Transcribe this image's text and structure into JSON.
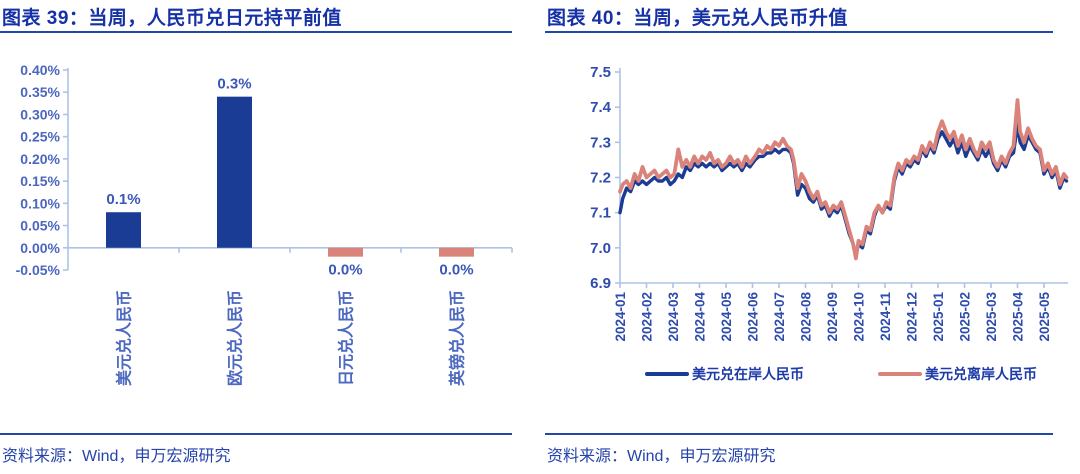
{
  "panels": [
    {
      "source": "资料来源：Wind，申万宏源研究"
    },
    {
      "source": "资料来源：Wind，申万宏源研究"
    }
  ],
  "colors": {
    "navy": "#1B3C94",
    "salmon": "#D9837B",
    "title_blue": "#1631A6",
    "rule_blue": "#2147AD",
    "axis_light_blue": "#AEC3E6",
    "tick_label_blue": "#4A66BE",
    "bold_label_blue": "#2E4BAE",
    "data_label_blue": "#3B57B8",
    "category_label_blue": "#4C68C0",
    "source_blue": "#2443AB",
    "legend_text_blue": "#1D3AA8"
  },
  "chart_data": [
    {
      "type": "bar",
      "title": "图表 39：当周，人民币兑日元持平前值",
      "categories": [
        "美元兑人民币",
        "欧元兑人民币",
        "日元兑人民币",
        "英镑兑人民币"
      ],
      "values": [
        0.08,
        0.34,
        -0.02,
        -0.02
      ],
      "bar_labels": [
        "0.1%",
        "0.3%",
        "0.0%",
        "0.0%"
      ],
      "y_tick_labels": [
        "0.40%",
        "0.35%",
        "0.30%",
        "0.25%",
        "0.20%",
        "0.15%",
        "0.10%",
        "0.05%",
        "0.00%",
        "-0.05%"
      ],
      "ylim": [
        -0.05,
        0.4
      ],
      "xlabel": "",
      "ylabel": "",
      "grid": false,
      "unit": "percent_week_change"
    },
    {
      "type": "line",
      "title": "图表 40：当周，美元兑人民币升值",
      "x_tick_labels": [
        "2024-01",
        "2024-02",
        "2024-03",
        "2024-04",
        "2024-05",
        "2024-06",
        "2024-07",
        "2024-08",
        "2024-09",
        "2024-10",
        "2024-11",
        "2024-12",
        "2025-01",
        "2025-02",
        "2025-03",
        "2025-04",
        "2025-05"
      ],
      "y_tick_labels": [
        "7.5",
        "7.4",
        "7.3",
        "7.2",
        "7.1",
        "7.0",
        "6.9"
      ],
      "ylim": [
        6.9,
        7.5
      ],
      "grid": false,
      "legend_position": "bottom",
      "series": [
        {
          "name": "美元兑在岸人民币",
          "color": "#1B3C94",
          "points": [
            [
              0.0,
              7.1
            ],
            [
              0.1,
              7.14
            ],
            [
              0.25,
              7.17
            ],
            [
              0.4,
              7.16
            ],
            [
              0.55,
              7.19
            ],
            [
              0.7,
              7.18
            ],
            [
              0.85,
              7.19
            ],
            [
              1.0,
              7.18
            ],
            [
              1.15,
              7.19
            ],
            [
              1.3,
              7.2
            ],
            [
              1.45,
              7.19
            ],
            [
              1.6,
              7.19
            ],
            [
              1.75,
              7.2
            ],
            [
              1.9,
              7.18
            ],
            [
              2.05,
              7.19
            ],
            [
              2.2,
              7.21
            ],
            [
              2.35,
              7.2
            ],
            [
              2.5,
              7.23
            ],
            [
              2.65,
              7.22
            ],
            [
              2.8,
              7.24
            ],
            [
              2.95,
              7.23
            ],
            [
              3.1,
              7.24
            ],
            [
              3.25,
              7.23
            ],
            [
              3.4,
              7.24
            ],
            [
              3.55,
              7.23
            ],
            [
              3.7,
              7.24
            ],
            [
              3.85,
              7.22
            ],
            [
              4.0,
              7.23
            ],
            [
              4.15,
              7.24
            ],
            [
              4.3,
              7.23
            ],
            [
              4.45,
              7.24
            ],
            [
              4.6,
              7.22
            ],
            [
              4.75,
              7.24
            ],
            [
              4.9,
              7.23
            ],
            [
              5.1,
              7.25
            ],
            [
              5.25,
              7.26
            ],
            [
              5.4,
              7.26
            ],
            [
              5.55,
              7.27
            ],
            [
              5.7,
              7.27
            ],
            [
              5.85,
              7.28
            ],
            [
              6.0,
              7.27
            ],
            [
              6.15,
              7.28
            ],
            [
              6.3,
              7.28
            ],
            [
              6.45,
              7.27
            ],
            [
              6.55,
              7.24
            ],
            [
              6.7,
              7.15
            ],
            [
              6.85,
              7.18
            ],
            [
              7.0,
              7.17
            ],
            [
              7.15,
              7.14
            ],
            [
              7.3,
              7.13
            ],
            [
              7.45,
              7.15
            ],
            [
              7.6,
              7.11
            ],
            [
              7.75,
              7.12
            ],
            [
              7.9,
              7.09
            ],
            [
              8.05,
              7.11
            ],
            [
              8.2,
              7.1
            ],
            [
              8.35,
              7.12
            ],
            [
              8.5,
              7.08
            ],
            [
              8.65,
              7.04
            ],
            [
              8.8,
              7.01
            ],
            [
              8.9,
              6.98
            ],
            [
              9.0,
              7.01
            ],
            [
              9.15,
              7.0
            ],
            [
              9.3,
              7.05
            ],
            [
              9.45,
              7.04
            ],
            [
              9.6,
              7.09
            ],
            [
              9.75,
              7.12
            ],
            [
              9.9,
              7.1
            ],
            [
              10.05,
              7.12
            ],
            [
              10.2,
              7.11
            ],
            [
              10.35,
              7.19
            ],
            [
              10.5,
              7.23
            ],
            [
              10.65,
              7.21
            ],
            [
              10.8,
              7.24
            ],
            [
              10.95,
              7.23
            ],
            [
              11.1,
              7.25
            ],
            [
              11.25,
              7.24
            ],
            [
              11.4,
              7.28
            ],
            [
              11.55,
              7.26
            ],
            [
              11.7,
              7.29
            ],
            [
              11.85,
              7.27
            ],
            [
              12.0,
              7.31
            ],
            [
              12.15,
              7.33
            ],
            [
              12.3,
              7.31
            ],
            [
              12.45,
              7.29
            ],
            [
              12.6,
              7.31
            ],
            [
              12.75,
              7.27
            ],
            [
              12.9,
              7.3
            ],
            [
              13.05,
              7.26
            ],
            [
              13.2,
              7.29
            ],
            [
              13.35,
              7.27
            ],
            [
              13.5,
              7.25
            ],
            [
              13.65,
              7.28
            ],
            [
              13.8,
              7.26
            ],
            [
              13.95,
              7.28
            ],
            [
              14.1,
              7.24
            ],
            [
              14.25,
              7.22
            ],
            [
              14.4,
              7.25
            ],
            [
              14.55,
              7.23
            ],
            [
              14.7,
              7.26
            ],
            [
              14.85,
              7.27
            ],
            [
              15.0,
              7.35
            ],
            [
              15.1,
              7.3
            ],
            [
              15.25,
              7.28
            ],
            [
              15.4,
              7.32
            ],
            [
              15.55,
              7.3
            ],
            [
              15.7,
              7.28
            ],
            [
              15.85,
              7.27
            ],
            [
              16.0,
              7.21
            ],
            [
              16.15,
              7.23
            ],
            [
              16.3,
              7.2
            ],
            [
              16.45,
              7.22
            ],
            [
              16.6,
              7.17
            ],
            [
              16.75,
              7.2
            ],
            [
              16.85,
              7.19
            ]
          ]
        },
        {
          "name": "美元兑离岸人民币",
          "color": "#D9837B",
          "points": [
            [
              0.0,
              7.16
            ],
            [
              0.1,
              7.18
            ],
            [
              0.25,
              7.19
            ],
            [
              0.4,
              7.17
            ],
            [
              0.55,
              7.21
            ],
            [
              0.7,
              7.19
            ],
            [
              0.85,
              7.23
            ],
            [
              1.0,
              7.2
            ],
            [
              1.15,
              7.21
            ],
            [
              1.3,
              7.22
            ],
            [
              1.45,
              7.2
            ],
            [
              1.6,
              7.21
            ],
            [
              1.75,
              7.22
            ],
            [
              1.9,
              7.2
            ],
            [
              2.05,
              7.21
            ],
            [
              2.2,
              7.28
            ],
            [
              2.35,
              7.23
            ],
            [
              2.5,
              7.25
            ],
            [
              2.65,
              7.23
            ],
            [
              2.8,
              7.26
            ],
            [
              2.95,
              7.24
            ],
            [
              3.1,
              7.26
            ],
            [
              3.25,
              7.25
            ],
            [
              3.4,
              7.27
            ],
            [
              3.55,
              7.24
            ],
            [
              3.7,
              7.25
            ],
            [
              3.85,
              7.23
            ],
            [
              4.0,
              7.24
            ],
            [
              4.15,
              7.26
            ],
            [
              4.3,
              7.24
            ],
            [
              4.45,
              7.25
            ],
            [
              4.6,
              7.23
            ],
            [
              4.75,
              7.26
            ],
            [
              4.9,
              7.24
            ],
            [
              5.1,
              7.26
            ],
            [
              5.25,
              7.28
            ],
            [
              5.4,
              7.27
            ],
            [
              5.55,
              7.29
            ],
            [
              5.7,
              7.28
            ],
            [
              5.85,
              7.3
            ],
            [
              6.0,
              7.29
            ],
            [
              6.15,
              7.31
            ],
            [
              6.3,
              7.29
            ],
            [
              6.45,
              7.28
            ],
            [
              6.55,
              7.25
            ],
            [
              6.7,
              7.17
            ],
            [
              6.85,
              7.21
            ],
            [
              7.0,
              7.19
            ],
            [
              7.15,
              7.16
            ],
            [
              7.3,
              7.14
            ],
            [
              7.45,
              7.16
            ],
            [
              7.6,
              7.12
            ],
            [
              7.75,
              7.13
            ],
            [
              7.9,
              7.1
            ],
            [
              8.05,
              7.12
            ],
            [
              8.2,
              7.11
            ],
            [
              8.35,
              7.13
            ],
            [
              8.5,
              7.09
            ],
            [
              8.65,
              7.05
            ],
            [
              8.8,
              7.01
            ],
            [
              8.9,
              6.97
            ],
            [
              9.0,
              7.02
            ],
            [
              9.15,
              7.01
            ],
            [
              9.3,
              7.06
            ],
            [
              9.45,
              7.05
            ],
            [
              9.6,
              7.1
            ],
            [
              9.75,
              7.12
            ],
            [
              9.9,
              7.1
            ],
            [
              10.05,
              7.13
            ],
            [
              10.2,
              7.12
            ],
            [
              10.35,
              7.2
            ],
            [
              10.5,
              7.24
            ],
            [
              10.65,
              7.22
            ],
            [
              10.8,
              7.25
            ],
            [
              10.95,
              7.24
            ],
            [
              11.1,
              7.26
            ],
            [
              11.25,
              7.25
            ],
            [
              11.4,
              7.29
            ],
            [
              11.55,
              7.27
            ],
            [
              11.7,
              7.3
            ],
            [
              11.85,
              7.28
            ],
            [
              12.0,
              7.33
            ],
            [
              12.15,
              7.36
            ],
            [
              12.3,
              7.33
            ],
            [
              12.45,
              7.31
            ],
            [
              12.6,
              7.33
            ],
            [
              12.75,
              7.29
            ],
            [
              12.9,
              7.32
            ],
            [
              13.05,
              7.28
            ],
            [
              13.2,
              7.31
            ],
            [
              13.35,
              7.28
            ],
            [
              13.5,
              7.26
            ],
            [
              13.65,
              7.3
            ],
            [
              13.8,
              7.28
            ],
            [
              13.95,
              7.3
            ],
            [
              14.1,
              7.25
            ],
            [
              14.25,
              7.23
            ],
            [
              14.4,
              7.26
            ],
            [
              14.55,
              7.24
            ],
            [
              14.7,
              7.27
            ],
            [
              14.85,
              7.29
            ],
            [
              15.0,
              7.42
            ],
            [
              15.1,
              7.33
            ],
            [
              15.25,
              7.3
            ],
            [
              15.4,
              7.34
            ],
            [
              15.55,
              7.31
            ],
            [
              15.7,
              7.29
            ],
            [
              15.85,
              7.28
            ],
            [
              16.0,
              7.22
            ],
            [
              16.15,
              7.24
            ],
            [
              16.3,
              7.21
            ],
            [
              16.45,
              7.23
            ],
            [
              16.6,
              7.18
            ],
            [
              16.75,
              7.21
            ],
            [
              16.85,
              7.2
            ]
          ]
        }
      ]
    }
  ]
}
